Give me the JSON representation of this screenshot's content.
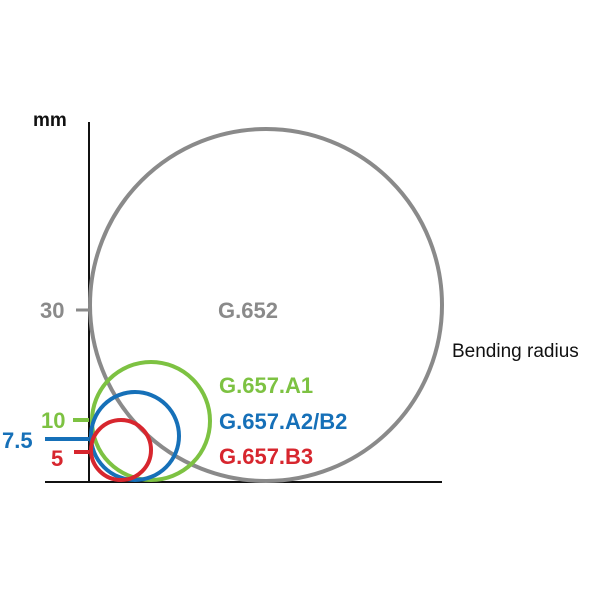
{
  "axis": {
    "unit_label": "mm",
    "x_label": "Bending radius"
  },
  "colors": {
    "gray": "#8a8a8a",
    "green": "#7dc242",
    "blue": "#1670b8",
    "red": "#d7262e",
    "axis": "#111111"
  },
  "circles": [
    {
      "name": "G.652",
      "radius_mm": 30,
      "tick_label": "30",
      "color_key": "gray"
    },
    {
      "name": "G.657.A1",
      "radius_mm": 10,
      "tick_label": "10",
      "color_key": "green"
    },
    {
      "name": "G.657.A2/B2",
      "radius_mm": 7.5,
      "tick_label": "7.5",
      "color_key": "blue"
    },
    {
      "name": "G.657.B3",
      "radius_mm": 5,
      "tick_label": "5",
      "color_key": "red"
    }
  ]
}
